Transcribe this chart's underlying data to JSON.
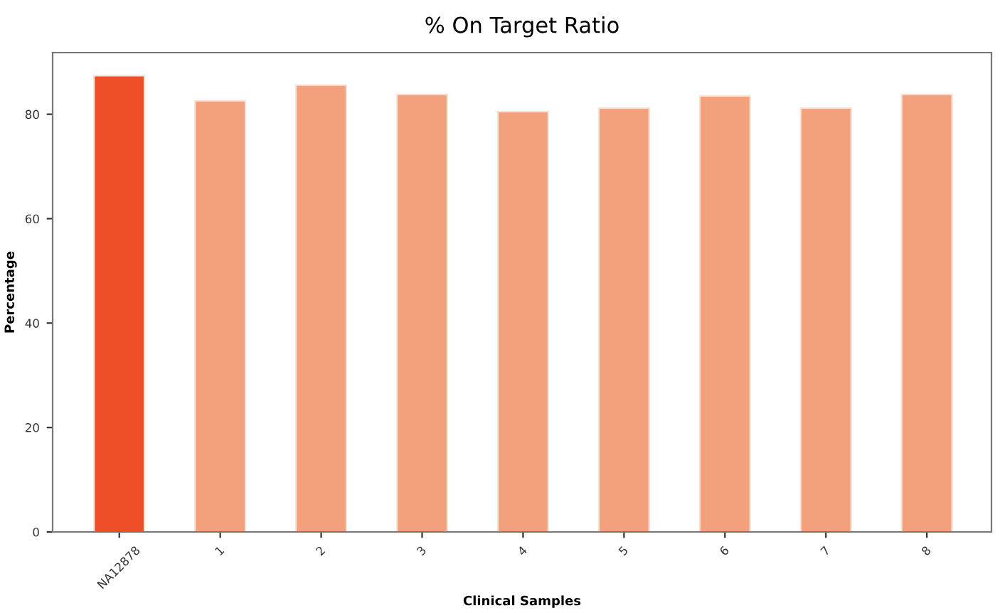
{
  "chart_data": {
    "type": "bar",
    "title": "% On Target Ratio",
    "xlabel": "Clinical Samples",
    "ylabel": "Percentage",
    "categories": [
      "NA12878",
      "1",
      "2",
      "3",
      "4",
      "5",
      "6",
      "7",
      "8"
    ],
    "values": [
      87.4,
      82.6,
      85.6,
      83.8,
      80.5,
      81.2,
      83.5,
      81.2,
      83.8
    ],
    "colors": [
      "#ee4f28",
      "#f3a07d",
      "#f3a07d",
      "#f3a07d",
      "#f3a07d",
      "#f3a07d",
      "#f3a07d",
      "#f3a07d",
      "#f3a07d"
    ],
    "ylim": [
      0,
      91.8
    ],
    "yticks": [
      0,
      20,
      40,
      60,
      80
    ],
    "grid": false,
    "legend": false
  }
}
